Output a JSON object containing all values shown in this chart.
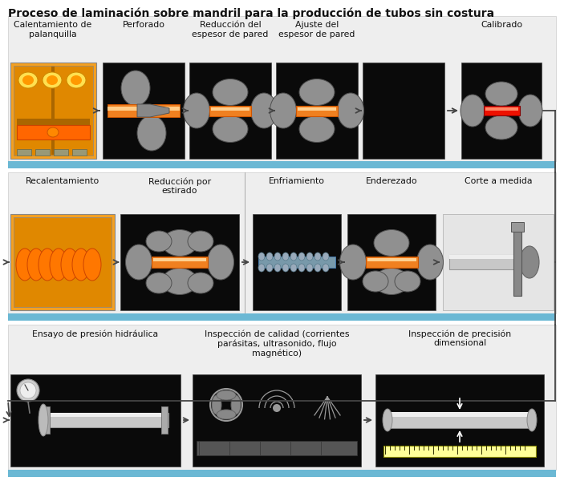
{
  "title": "Proceso de laminación sobre mandril para la producción de tubos sin costura",
  "bg_color": "#ffffff",
  "separator_color": "#6BB8D4",
  "black_panel": "#0a0a0a",
  "orange1": "#F5A020",
  "orange2": "#E08800",
  "orange_tube": "#F08020",
  "gray_roller": "#909090",
  "gray_roller_dark": "#505050",
  "gray_light": "#C8C8C8",
  "gray_medium": "#888888",
  "red_tube": "#EE1100",
  "row1_labels": [
    "Calentamiento de\npalanquilla",
    "Perforado",
    "Reducción del\nespesor de pared",
    "Ajuste del\nespesor de pared",
    "Calibrado"
  ],
  "row2_labels": [
    "Recalentamiento",
    "Reducción por\nestirado",
    "Enfriamiento",
    "Enderezado",
    "Corte a medida"
  ],
  "row3_labels": [
    "Ensayo de presión hidráulica",
    "Inspección de calidad (corrientes\nparásitas, ultrasonido, flujo\nmagnético)",
    "Inspección de precisión\ndimensional"
  ],
  "arrow_color": "#444444",
  "label_fs": 7.8,
  "title_fs": 10.0
}
